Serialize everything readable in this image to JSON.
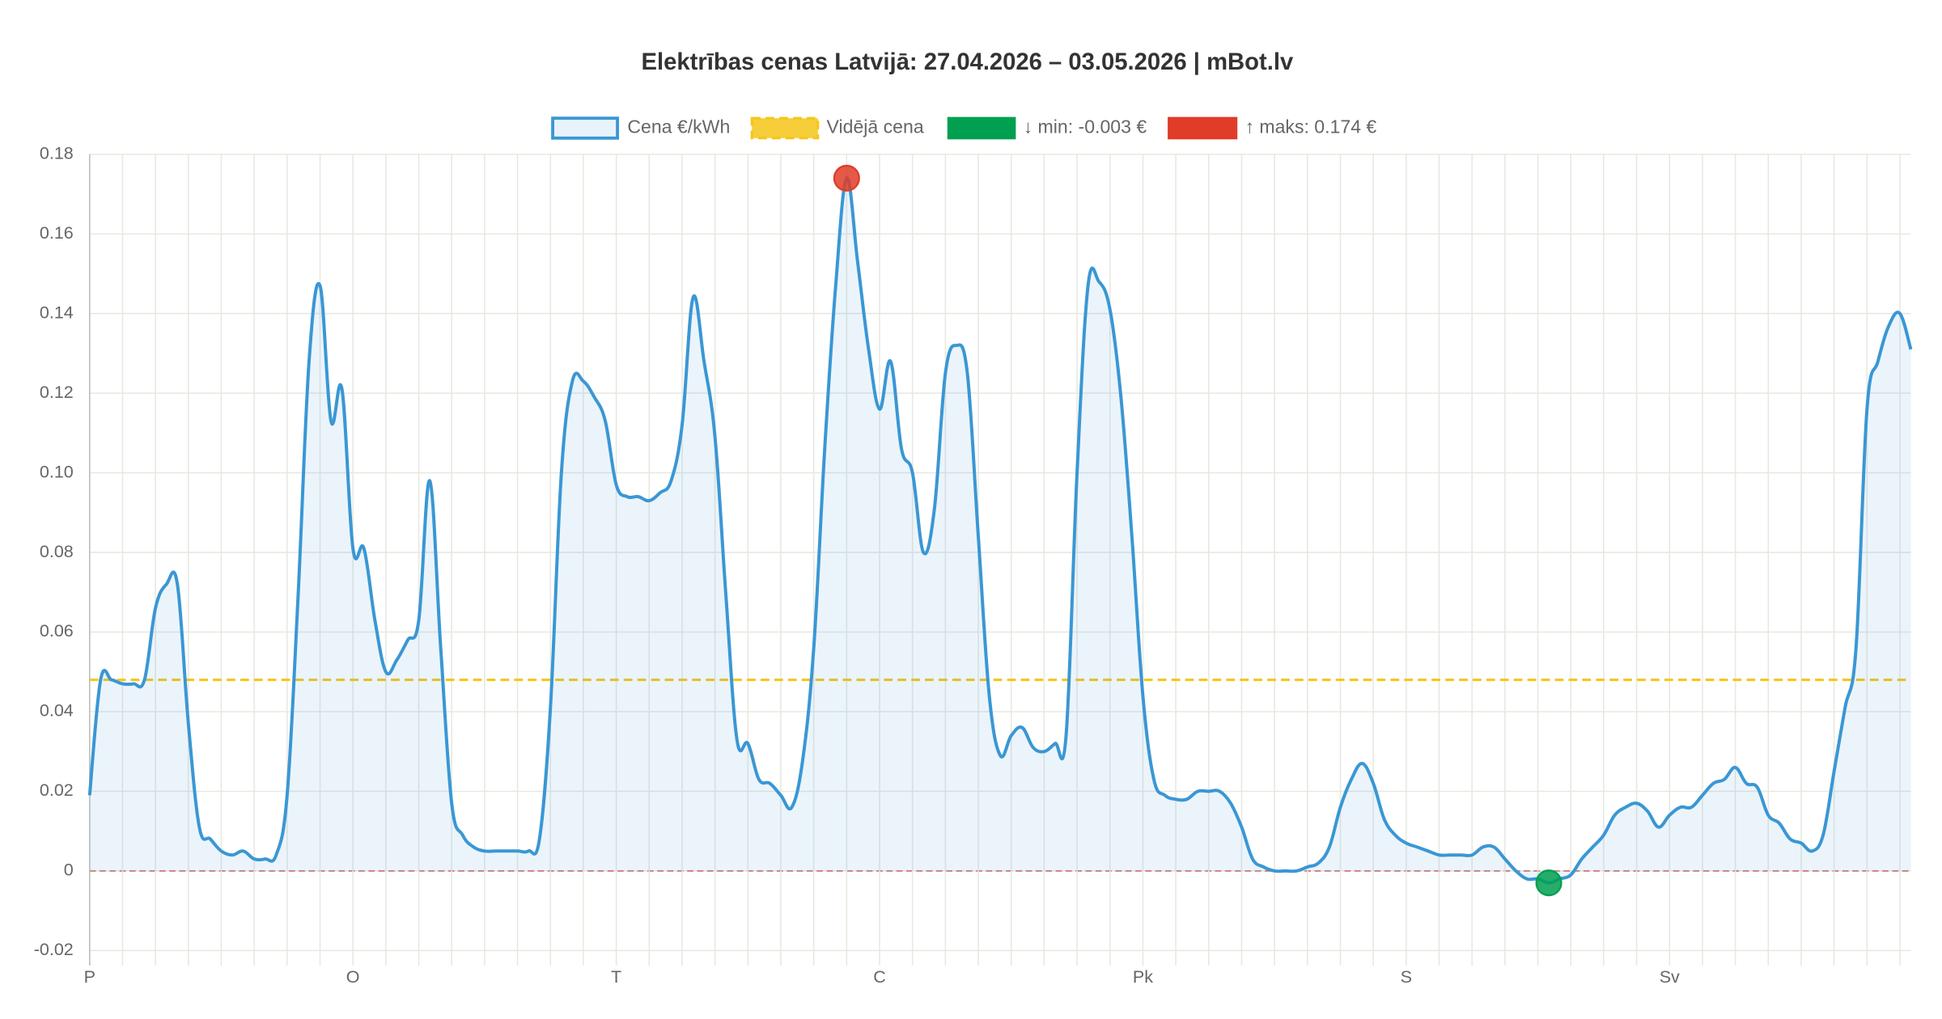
{
  "chart_data": {
    "type": "line",
    "title": "Elektrības cenas Latvijā: 27.04.2026 – 03.05.2026 | mBot.lv",
    "categories": [
      "P",
      null,
      null,
      null,
      null,
      null,
      null,
      null,
      null,
      null,
      null,
      null,
      null,
      null,
      null,
      null,
      null,
      null,
      null,
      null,
      null,
      null,
      null,
      null,
      "O",
      null,
      null,
      null,
      null,
      null,
      null,
      null,
      null,
      null,
      null,
      null,
      null,
      null,
      null,
      null,
      null,
      null,
      null,
      null,
      null,
      null,
      null,
      null,
      "T",
      null,
      null,
      null,
      null,
      null,
      null,
      null,
      null,
      null,
      null,
      null,
      null,
      null,
      null,
      null,
      null,
      null,
      null,
      null,
      null,
      null,
      null,
      null,
      "C",
      null,
      null,
      null,
      null,
      null,
      null,
      null,
      null,
      null,
      null,
      null,
      null,
      null,
      null,
      null,
      null,
      null,
      null,
      null,
      null,
      null,
      null,
      null,
      "Pk",
      null,
      null,
      null,
      null,
      null,
      null,
      null,
      null,
      null,
      null,
      null,
      null,
      null,
      null,
      null,
      null,
      null,
      null,
      null,
      null,
      null,
      null,
      null,
      "S",
      null,
      null,
      null,
      null,
      null,
      null,
      null,
      null,
      null,
      null,
      null,
      null,
      null,
      null,
      null,
      null,
      null,
      null,
      null,
      null,
      null,
      null,
      null,
      "Sv",
      null,
      null,
      null,
      null,
      null,
      null,
      null,
      null,
      null,
      null,
      null,
      null,
      null,
      null,
      null,
      null,
      null,
      null,
      null,
      null,
      null,
      null
    ],
    "series": [
      {
        "name": "Cena €/kWh",
        "color": "#3a97d4",
        "values": [
          0.019,
          0.048,
          0.048,
          0.047,
          0.047,
          0.048,
          0.066,
          0.072,
          0.072,
          0.037,
          0.011,
          0.008,
          0.005,
          0.004,
          0.005,
          0.003,
          0.003,
          0.004,
          0.019,
          0.069,
          0.128,
          0.147,
          0.113,
          0.121,
          0.081,
          0.081,
          0.063,
          0.05,
          0.053,
          0.058,
          0.063,
          0.098,
          0.056,
          0.017,
          0.009,
          0.006,
          0.005,
          0.005,
          0.005,
          0.005,
          0.005,
          0.008,
          0.041,
          0.1,
          0.123,
          0.123,
          0.119,
          0.113,
          0.097,
          0.094,
          0.094,
          0.093,
          0.095,
          0.098,
          0.112,
          0.144,
          0.128,
          0.109,
          0.069,
          0.033,
          0.032,
          0.023,
          0.022,
          0.019,
          0.016,
          0.028,
          0.056,
          0.106,
          0.147,
          0.174,
          0.153,
          0.131,
          0.116,
          0.128,
          0.106,
          0.1,
          0.08,
          0.091,
          0.125,
          0.132,
          0.125,
          0.084,
          0.044,
          0.029,
          0.034,
          0.036,
          0.031,
          0.03,
          0.032,
          0.034,
          0.1,
          0.147,
          0.148,
          0.141,
          0.119,
          0.084,
          0.044,
          0.023,
          0.019,
          0.018,
          0.018,
          0.02,
          0.02,
          0.02,
          0.017,
          0.011,
          0.003,
          0.001,
          0,
          0,
          0,
          0.001,
          0.002,
          0.006,
          0.016,
          0.023,
          0.027,
          0.022,
          0.013,
          0.009,
          0.007,
          0.006,
          0.005,
          0.004,
          0.004,
          0.004,
          0.004,
          0.006,
          0.006,
          0.003,
          0,
          -0.002,
          -0.002,
          -0.003,
          -0.002,
          -0.001,
          0.003,
          0.006,
          0.009,
          0.014,
          0.016,
          0.017,
          0.015,
          0.011,
          0.014,
          0.016,
          0.016,
          0.019,
          0.022,
          0.023,
          0.026,
          0.022,
          0.021,
          0.014,
          0.012,
          0.008,
          0.007,
          0.005,
          0.009,
          0.025,
          0.041,
          0.056,
          0.116,
          0.128,
          0.137,
          0.14,
          0.131
        ]
      }
    ],
    "average": {
      "name": "Vidējā cena",
      "color": "#f5c518",
      "value": 0.048
    },
    "markers": [
      {
        "label": "↓ min: -0.003 €",
        "color": "#00a050"
      },
      {
        "label": "↑ maks: 0.174 €",
        "color": "#e03c28"
      }
    ],
    "ylim": [
      -0.02,
      0.18
    ],
    "yticks": [
      -0.02,
      0,
      0.02,
      0.04,
      0.06,
      0.08,
      {
        "value": 0.1,
        "label": "0.10"
      },
      0.12,
      0.14,
      0.16,
      0.18
    ],
    "grid": true
  }
}
